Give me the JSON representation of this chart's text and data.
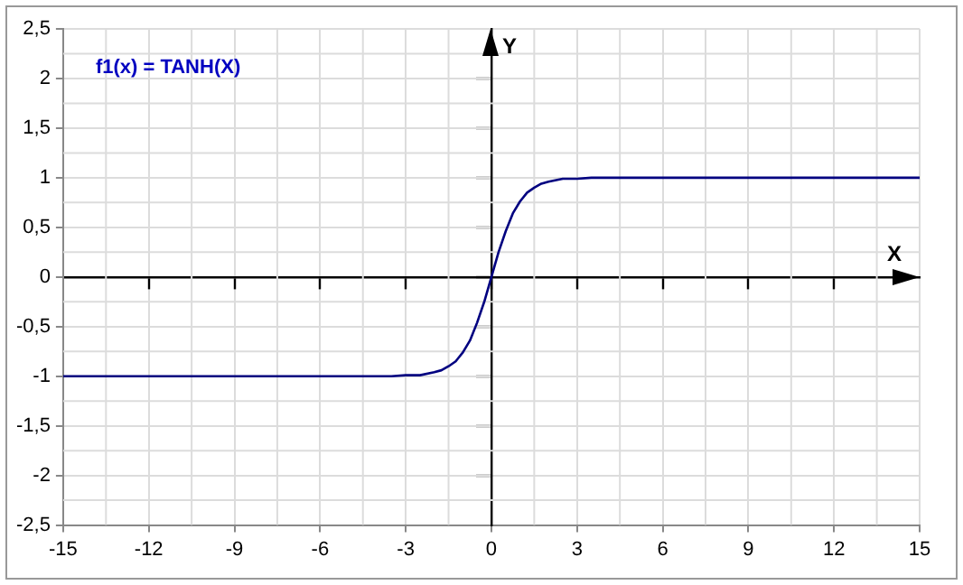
{
  "chart_data": {
    "type": "line",
    "title": "f1(x) = TANH(X)",
    "xlabel": "X",
    "ylabel": "Y",
    "series": [
      {
        "color": "#000080",
        "x": [
          -15,
          -9,
          -6,
          -5,
          -4,
          -3.5,
          -3,
          -2.5,
          -2,
          -1.75,
          -1.5,
          -1.25,
          -1,
          -0.75,
          -0.5,
          -0.25,
          0,
          0.25,
          0.5,
          0.75,
          1,
          1.25,
          1.5,
          1.75,
          2,
          2.5,
          3,
          3.5,
          4,
          5,
          6,
          9,
          15
        ],
        "values": [
          -1,
          -1,
          -1,
          -1,
          -1,
          -1,
          -0.99,
          -0.99,
          -0.96,
          -0.94,
          -0.9,
          -0.85,
          -0.76,
          -0.64,
          -0.46,
          -0.25,
          0,
          0.25,
          0.46,
          0.64,
          0.76,
          0.85,
          0.9,
          0.94,
          0.96,
          0.99,
          0.99,
          1,
          1,
          1,
          1,
          1,
          1
        ]
      }
    ],
    "xlim": [
      -15,
      15
    ],
    "xticks": [
      -15,
      -12,
      -9,
      -6,
      -3,
      0,
      3,
      6,
      9,
      12,
      15
    ],
    "ylim": [
      -2.5,
      2.5
    ],
    "yticks": [
      {
        "value": -2.5,
        "label": "-2,5"
      },
      -2,
      {
        "value": -1.5,
        "label": "-1,5"
      },
      -1,
      {
        "value": -0.5,
        "label": "-0,5"
      },
      0,
      {
        "value": 0.5,
        "label": "0,5"
      },
      1,
      {
        "value": 1.5,
        "label": "1,5"
      },
      2,
      {
        "value": 2.5,
        "label": "2,5"
      }
    ],
    "grid": true,
    "legend": false,
    "marker": "none",
    "line_style": "solid"
  }
}
